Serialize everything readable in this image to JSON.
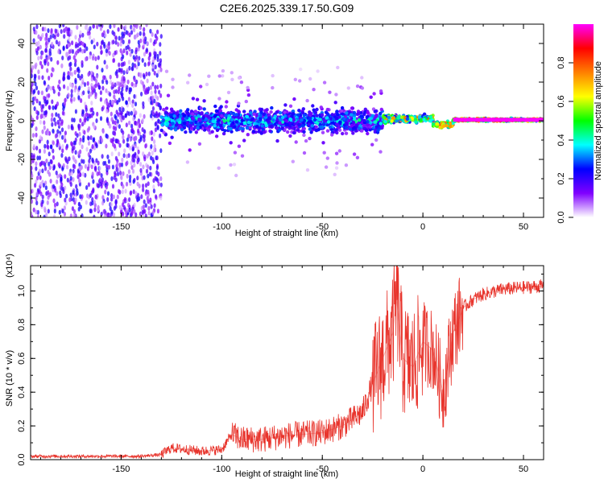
{
  "title": "C2E6.2025.339.17.50.G09",
  "chart_data": [
    {
      "type": "heatmap",
      "title": "C2E6.2025.339.17.50.G09",
      "xlabel": "Height of straight line (km)",
      "ylabel": "Frequency (Hz)",
      "xlim": [
        -195,
        60
      ],
      "ylim": [
        -50,
        50
      ],
      "xticks": [
        -150,
        -100,
        -50,
        0,
        50
      ],
      "yticks": [
        -40,
        -20,
        0,
        20,
        40
      ],
      "colorbar": {
        "label": "Normalized spectral amplitude",
        "range": [
          0,
          1
        ],
        "ticks": [
          "0.0",
          "0.2",
          "0.4",
          "0.6",
          "0.8"
        ],
        "colors": [
          "#ffffff",
          "#8000ff",
          "#0000ff",
          "#00ffff",
          "#00ff00",
          "#ffff00",
          "#ff8000",
          "#ff0000",
          "#ff00ff"
        ]
      },
      "regions": [
        {
          "x_from": -195,
          "x_to": -130,
          "freq_spread": 50,
          "amplitude": 0.15,
          "description": "broadband noise"
        },
        {
          "x_from": -130,
          "x_to": -20,
          "freq_center": 0,
          "freq_spread": 8,
          "amplitude": 0.35
        },
        {
          "x_from": -20,
          "x_to": 5,
          "freq_center": 1,
          "freq_spread": 3,
          "amplitude": 0.7
        },
        {
          "x_from": 5,
          "x_to": 15,
          "freq_center": -2,
          "freq_spread": 2,
          "amplitude": 0.85
        },
        {
          "x_from": 15,
          "x_to": 60,
          "freq_center": 0.5,
          "freq_spread": 1,
          "amplitude": 1.0
        }
      ]
    },
    {
      "type": "line",
      "xlabel": "Height of straight line (km)",
      "ylabel": "SNR (10 * v/v)",
      "yscale_label": "(x10⁴)",
      "xlim": [
        -195,
        60
      ],
      "ylim": [
        0,
        1.15
      ],
      "xticks": [
        -150,
        -100,
        -50,
        0,
        50
      ],
      "yticks": [
        "0.0",
        "0.2",
        "0.4",
        "0.6",
        "0.8",
        "1.0"
      ],
      "color": "#e8342c",
      "series": [
        {
          "name": "SNR",
          "x": [
            -195,
            -180,
            -160,
            -140,
            -130,
            -125,
            -110,
            -100,
            -95,
            -90,
            -80,
            -70,
            -60,
            -50,
            -40,
            -30,
            -25,
            -20,
            -15,
            -13,
            -10,
            -5,
            0,
            5,
            10,
            15,
            20,
            25,
            30,
            40,
            50,
            60
          ],
          "y": [
            0.02,
            0.02,
            0.02,
            0.02,
            0.03,
            0.07,
            0.05,
            0.06,
            0.15,
            0.12,
            0.12,
            0.14,
            0.15,
            0.16,
            0.2,
            0.28,
            0.45,
            0.6,
            0.75,
            0.95,
            0.6,
            0.55,
            0.7,
            0.65,
            0.4,
            0.75,
            0.9,
            0.95,
            0.98,
            1.01,
            1.02,
            1.03
          ]
        }
      ]
    }
  ]
}
